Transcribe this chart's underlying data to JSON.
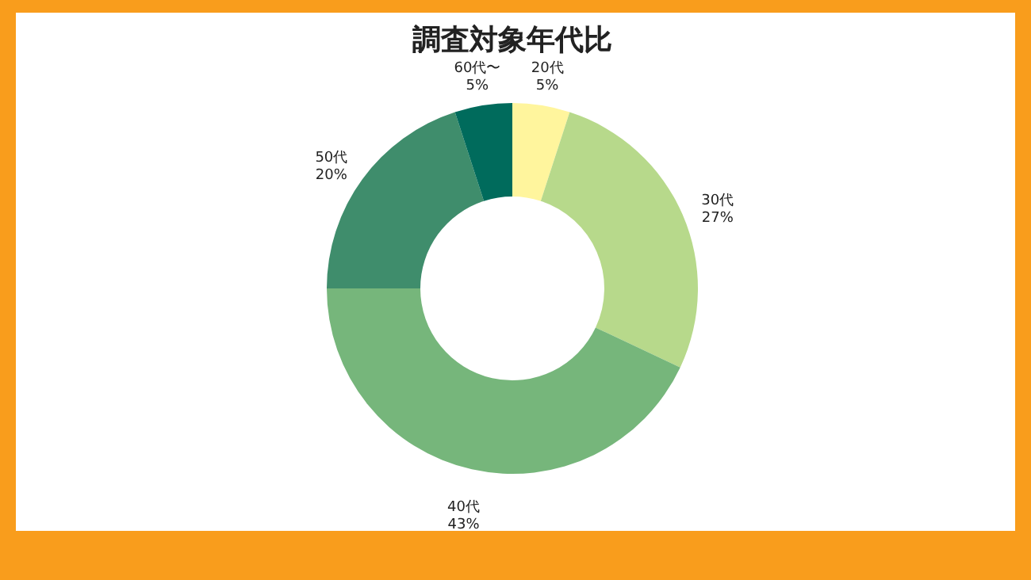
{
  "chart_data": {
    "type": "donut",
    "title": "調査対象年代比",
    "categories": [
      "20代",
      "30代",
      "40代",
      "50代",
      "60代〜"
    ],
    "values": [
      5,
      27,
      43,
      20,
      5
    ],
    "value_labels": [
      "5%",
      "27%",
      "43%",
      "20%",
      "5%"
    ],
    "colors": [
      "#fff59d",
      "#b7d98b",
      "#76b67b",
      "#3f8d6c",
      "#006b5c"
    ]
  }
}
